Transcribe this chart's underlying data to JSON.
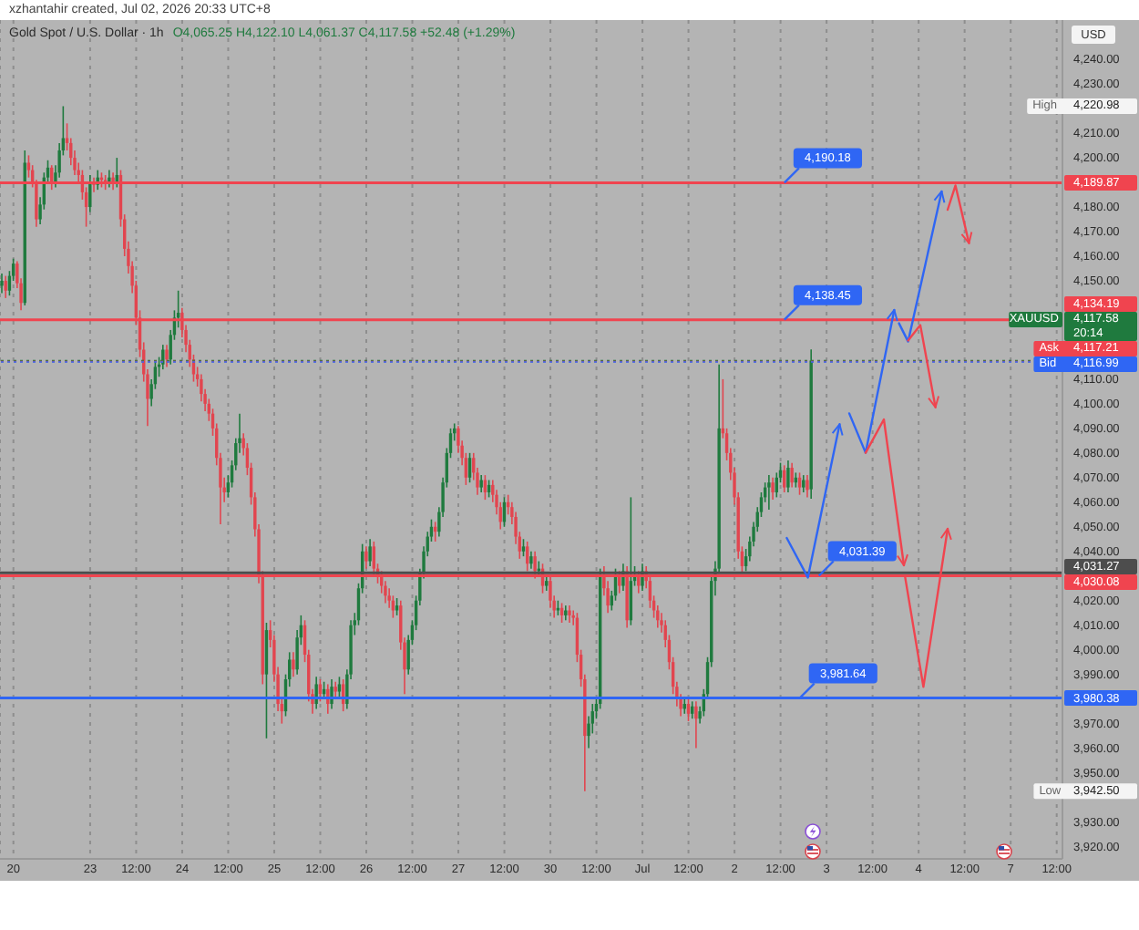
{
  "chart_data": {
    "type": "candlestick",
    "title": "Gold Spot / U.S. Dollar · 1h",
    "subtitle": "O4,065.25 H4,122.10 L4,061.37 C4,117.58 +52.48 (+1.29%)",
    "ylabel": "USD",
    "annotations": [
      "xzhantahir created, Jul 02, 2026 20:33 UTC+8",
      "High 4,220.98",
      "Low 3,942.50",
      {
        "text": "4,190.18",
        "y": 4189.87
      },
      {
        "text": "4,138.45",
        "y": 4134.19
      },
      {
        "text": "4,031.39",
        "y": 4030.08
      },
      {
        "text": "3,981.64",
        "y": 3980.38
      }
    ],
    "categories": [
      null,
      null,
      null,
      "20",
      null,
      null,
      null,
      null,
      null,
      null,
      null,
      null,
      null,
      null,
      null,
      null,
      null,
      null,
      null,
      null,
      null,
      null,
      null,
      "23",
      null,
      null,
      null,
      null,
      null,
      null,
      null,
      null,
      null,
      null,
      null,
      "12:00",
      null,
      null,
      null,
      null,
      null,
      null,
      null,
      null,
      null,
      null,
      null,
      "24",
      null,
      null,
      null,
      null,
      null,
      null,
      null,
      null,
      null,
      null,
      null,
      "12:00",
      null,
      null,
      null,
      null,
      null,
      null,
      null,
      null,
      null,
      null,
      null,
      "25",
      null,
      null,
      null,
      null,
      null,
      null,
      null,
      null,
      null,
      null,
      null,
      "12:00",
      null,
      null,
      null,
      null,
      null,
      null,
      null,
      null,
      null,
      null,
      null,
      "26",
      null,
      null,
      null,
      null,
      null,
      null,
      null,
      null,
      null,
      null,
      null,
      "12:00",
      null,
      null,
      null,
      null,
      null,
      null,
      null,
      null,
      null,
      null,
      null,
      "27",
      null,
      null,
      null,
      null,
      null,
      null,
      null,
      null,
      null,
      null,
      null,
      "12:00",
      null,
      null,
      null,
      null,
      null,
      null,
      null,
      null,
      null,
      null,
      null,
      "30",
      null,
      null,
      null,
      null,
      null,
      null,
      null,
      null,
      null,
      null,
      null,
      "12:00",
      null,
      null,
      null,
      null,
      null,
      null,
      null,
      null,
      null,
      null,
      null,
      "Jul",
      null,
      null,
      null,
      null,
      null,
      null,
      null,
      null,
      null,
      null,
      null,
      "12:00",
      null,
      null,
      null,
      null,
      null,
      null,
      null,
      null,
      null,
      null,
      null,
      "2",
      null,
      null,
      null,
      null,
      null,
      null,
      null,
      null,
      null,
      null,
      null,
      "12:00",
      null,
      null,
      null,
      null,
      null,
      null,
      null,
      null,
      null,
      null,
      null,
      "3",
      null,
      null,
      null,
      null,
      null,
      null,
      null,
      null,
      null,
      null,
      null,
      "12:00",
      null,
      null,
      null,
      null,
      null,
      null,
      null,
      null,
      null,
      null,
      null,
      "4",
      null,
      null,
      null,
      null,
      null,
      null,
      null,
      null,
      null,
      null,
      null,
      "12:00",
      null,
      null,
      null,
      null,
      null,
      null,
      null,
      null,
      null,
      null,
      null,
      "7",
      null,
      null,
      null,
      null,
      null,
      null,
      null,
      null,
      null,
      null,
      null,
      "12:00",
      null
    ],
    "ohlc": [
      [
        4148,
        4153,
        4145,
        4150
      ],
      [
        4150,
        4152,
        4143,
        4146
      ],
      [
        4146,
        4154,
        4144,
        4152
      ],
      [
        4152,
        4159,
        4150,
        4157
      ],
      [
        4157,
        4158,
        4147,
        4149
      ],
      [
        4149,
        4151,
        4138,
        4141
      ],
      [
        4141,
        4203,
        4140,
        4198
      ],
      [
        4198,
        4201,
        4192,
        4195
      ],
      [
        4195,
        4197,
        4188,
        4190
      ],
      [
        4190,
        4191,
        4172,
        4175
      ],
      [
        4175,
        4184,
        4173,
        4181
      ],
      [
        4181,
        4194,
        4179,
        4192
      ],
      [
        4192,
        4199,
        4190,
        4196
      ],
      [
        4196,
        4197,
        4187,
        4190
      ],
      [
        4190,
        4197,
        4188,
        4194
      ],
      [
        4194,
        4206,
        4192,
        4203
      ],
      [
        4203,
        4220.98,
        4201,
        4208
      ],
      [
        4208,
        4214,
        4203,
        4206
      ],
      [
        4206,
        4208,
        4197,
        4200
      ],
      [
        4200,
        4203,
        4193,
        4195
      ],
      [
        4195,
        4198,
        4190,
        4193
      ],
      [
        4193,
        4195,
        4183,
        4186
      ],
      [
        4186,
        4188,
        4172,
        4180
      ],
      [
        4180,
        4193,
        4178,
        4190
      ],
      [
        4190,
        4192,
        4186,
        4189
      ],
      [
        4189,
        4195,
        4187,
        4192
      ],
      [
        4192,
        4194,
        4188,
        4191
      ],
      [
        4191,
        4193,
        4187,
        4190
      ],
      [
        4190,
        4195,
        4188,
        4192
      ],
      [
        4192,
        4194,
        4187,
        4190
      ],
      [
        4190,
        4200,
        4188,
        4193
      ],
      [
        4193,
        4195,
        4172,
        4175
      ],
      [
        4175,
        4177,
        4160,
        4163
      ],
      [
        4163,
        4166,
        4153,
        4156
      ],
      [
        4156,
        4158,
        4145,
        4148
      ],
      [
        4148,
        4150,
        4132,
        4135
      ],
      [
        4135,
        4138,
        4119,
        4122
      ],
      [
        4122,
        4125,
        4109,
        4112
      ],
      [
        4112,
        4114,
        4091,
        4102
      ],
      [
        4102,
        4110,
        4099,
        4108
      ],
      [
        4108,
        4117,
        4106,
        4115
      ],
      [
        4115,
        4119,
        4111,
        4116
      ],
      [
        4116,
        4124,
        4114,
        4122
      ],
      [
        4122,
        4124,
        4115,
        4118
      ],
      [
        4118,
        4130,
        4116,
        4128
      ],
      [
        4128,
        4138,
        4126,
        4135
      ],
      [
        4135,
        4146,
        4131,
        4137
      ],
      [
        4137,
        4139,
        4127,
        4130
      ],
      [
        4130,
        4132,
        4121,
        4124
      ],
      [
        4124,
        4126,
        4115,
        4118
      ],
      [
        4118,
        4120,
        4109,
        4112
      ],
      [
        4112,
        4115,
        4107,
        4110
      ],
      [
        4110,
        4112,
        4101,
        4104
      ],
      [
        4104,
        4106,
        4097,
        4100
      ],
      [
        4100,
        4102,
        4093,
        4096
      ],
      [
        4096,
        4098,
        4087,
        4090
      ],
      [
        4090,
        4092,
        4075,
        4078
      ],
      [
        4078,
        4080,
        4051,
        4066
      ],
      [
        4066,
        4070,
        4060,
        4064
      ],
      [
        4064,
        4071,
        4062,
        4068
      ],
      [
        4068,
        4077,
        4066,
        4075
      ],
      [
        4075,
        4086,
        4073,
        4084
      ],
      [
        4084,
        4096,
        4080,
        4086
      ],
      [
        4086,
        4088,
        4079,
        4082
      ],
      [
        4082,
        4084,
        4071,
        4074
      ],
      [
        4074,
        4076,
        4059,
        4062
      ],
      [
        4062,
        4064,
        4046,
        4049
      ],
      [
        4049,
        4051,
        4027,
        4030
      ],
      [
        4030,
        4032,
        3986,
        3990
      ],
      [
        3990,
        4011,
        3964,
        4008
      ],
      [
        4008,
        4012,
        4001,
        4004
      ],
      [
        4004,
        4006,
        3987,
        3990
      ],
      [
        3990,
        3993,
        3975,
        3978
      ],
      [
        3978,
        3981,
        3970,
        3975
      ],
      [
        3975,
        3990,
        3973,
        3988
      ],
      [
        3988,
        3999,
        3985,
        3996
      ],
      [
        3996,
        3999,
        3989,
        3992
      ],
      [
        3992,
        4008,
        3990,
        4005
      ],
      [
        4005,
        4014,
        4002,
        4010
      ],
      [
        4010,
        4012,
        3995,
        3998
      ],
      [
        3998,
        4000,
        3979,
        3982
      ],
      [
        3982,
        3984,
        3974,
        3978
      ],
      [
        3978,
        3989,
        3976,
        3986
      ],
      [
        3986,
        3988,
        3979,
        3982
      ],
      [
        3982,
        3987,
        3980,
        3984
      ],
      [
        3984,
        3986,
        3974,
        3978
      ],
      [
        3978,
        3988,
        3976,
        3985
      ],
      [
        3985,
        3987,
        3980,
        3983
      ],
      [
        3983,
        3989,
        3981,
        3986
      ],
      [
        3986,
        3988,
        3975,
        3978
      ],
      [
        3978,
        3992,
        3976,
        3990
      ],
      [
        3990,
        4012,
        3988,
        4010
      ],
      [
        4010,
        4015,
        4006,
        4012
      ],
      [
        4012,
        4027,
        4010,
        4025
      ],
      [
        4025,
        4043,
        4023,
        4040
      ],
      [
        4040,
        4042,
        4033,
        4036
      ],
      [
        4036,
        4045,
        4034,
        4042
      ],
      [
        4042,
        4044,
        4030,
        4033
      ],
      [
        4033,
        4035,
        4027,
        4030
      ],
      [
        4030,
        4032,
        4023,
        4026
      ],
      [
        4026,
        4028,
        4019,
        4022
      ],
      [
        4022,
        4025,
        4017,
        4020
      ],
      [
        4020,
        4022,
        4013,
        4016
      ],
      [
        4016,
        4021,
        4014,
        4018
      ],
      [
        4018,
        4020,
        4000,
        4003
      ],
      [
        4003,
        4005,
        3982,
        3992
      ],
      [
        3992,
        4006,
        3990,
        4004
      ],
      [
        4004,
        4012,
        4002,
        4010
      ],
      [
        4010,
        4022,
        4008,
        4020
      ],
      [
        4020,
        4033,
        4018,
        4031
      ],
      [
        4031,
        4042,
        4029,
        4040
      ],
      [
        4040,
        4048,
        4038,
        4046
      ],
      [
        4046,
        4053,
        4044,
        4050
      ],
      [
        4050,
        4052,
        4044,
        4048
      ],
      [
        4048,
        4058,
        4046,
        4056
      ],
      [
        4056,
        4070,
        4054,
        4068
      ],
      [
        4068,
        4082,
        4066,
        4080
      ],
      [
        4080,
        4090,
        4078,
        4088
      ],
      [
        4088,
        4092,
        4085,
        4090
      ],
      [
        4090,
        4091,
        4080,
        4083
      ],
      [
        4083,
        4085,
        4075,
        4078
      ],
      [
        4078,
        4080,
        4067,
        4070
      ],
      [
        4070,
        4080,
        4068,
        4078
      ],
      [
        4078,
        4080,
        4069,
        4072
      ],
      [
        4072,
        4074,
        4063,
        4066
      ],
      [
        4066,
        4071,
        4064,
        4069
      ],
      [
        4069,
        4071,
        4061,
        4064
      ],
      [
        4064,
        4069,
        4062,
        4067
      ],
      [
        4067,
        4069,
        4060,
        4063
      ],
      [
        4063,
        4065,
        4055,
        4058
      ],
      [
        4058,
        4060,
        4049,
        4052
      ],
      [
        4052,
        4062,
        4050,
        4060
      ],
      [
        4060,
        4063,
        4055,
        4058
      ],
      [
        4058,
        4060,
        4051,
        4054
      ],
      [
        4054,
        4056,
        4043,
        4046
      ],
      [
        4046,
        4048,
        4037,
        4040
      ],
      [
        4040,
        4045,
        4038,
        4042
      ],
      [
        4042,
        4044,
        4032,
        4035
      ],
      [
        4035,
        4040,
        4033,
        4038
      ],
      [
        4038,
        4040,
        4029,
        4032
      ],
      [
        4032,
        4036,
        4030,
        4033
      ],
      [
        4033,
        4035,
        4023,
        4026
      ],
      [
        4026,
        4030,
        4024,
        4028
      ],
      [
        4028,
        4030,
        4017,
        4020
      ],
      [
        4020,
        4022,
        4013,
        4016
      ],
      [
        4016,
        4020,
        4014,
        4017
      ],
      [
        4017,
        4019,
        4011,
        4014
      ],
      [
        4014,
        4018,
        4012,
        4016
      ],
      [
        4016,
        4018,
        4011,
        4014
      ],
      [
        4014,
        4016,
        4010,
        4013
      ],
      [
        4013,
        4015,
        3995,
        3998
      ],
      [
        3998,
        4000,
        3985,
        3988
      ],
      [
        3988,
        3990,
        3942.5,
        3965
      ],
      [
        3965,
        3973,
        3960,
        3970
      ],
      [
        3970,
        3978,
        3966,
        3975
      ],
      [
        3975,
        3981,
        3972,
        3978
      ],
      [
        3978,
        4033,
        3976,
        4030
      ],
      [
        4030,
        4034,
        4022,
        4025
      ],
      [
        4025,
        4028,
        4015,
        4018
      ],
      [
        4018,
        4024,
        4016,
        4022
      ],
      [
        4022,
        4033,
        4020,
        4030
      ],
      [
        4030,
        4032,
        4023,
        4026
      ],
      [
        4026,
        4035,
        4024,
        4032
      ],
      [
        4032,
        4034,
        4009,
        4012
      ],
      [
        4012,
        4062,
        4010,
        4028
      ],
      [
        4028,
        4034,
        4026,
        4030
      ],
      [
        4030,
        4032,
        4023,
        4026
      ],
      [
        4026,
        4035,
        4024,
        4032
      ],
      [
        4032,
        4034,
        4025,
        4028
      ],
      [
        4028,
        4030,
        4017,
        4020
      ],
      [
        4020,
        4022,
        4013,
        4016
      ],
      [
        4016,
        4018,
        4009,
        4012
      ],
      [
        4012,
        4015,
        4007,
        4010
      ],
      [
        4010,
        4012,
        4001,
        4004
      ],
      [
        4004,
        4006,
        3992,
        3995
      ],
      [
        3995,
        3997,
        3982,
        3985
      ],
      [
        3985,
        3987,
        3977,
        3980
      ],
      [
        3980,
        3982,
        3973,
        3976
      ],
      [
        3976,
        3981,
        3974,
        3978
      ],
      [
        3978,
        3980,
        3971,
        3974
      ],
      [
        3974,
        3979,
        3972,
        3977
      ],
      [
        3977,
        3979,
        3960,
        3972
      ],
      [
        3972,
        3977,
        3970,
        3975
      ],
      [
        3975,
        3984,
        3973,
        3982
      ],
      [
        3982,
        3997,
        3980,
        3995
      ],
      [
        3995,
        4030,
        3993,
        4028
      ],
      [
        4028,
        4036,
        4022,
        4033
      ],
      [
        4033,
        4116,
        4031,
        4090
      ],
      [
        4090,
        4110,
        4086,
        4088
      ],
      [
        4088,
        4090,
        4077,
        4080
      ],
      [
        4080,
        4082,
        4069,
        4072
      ],
      [
        4072,
        4074,
        4059,
        4062
      ],
      [
        4062,
        4064,
        4037,
        4040
      ],
      [
        4040,
        4042,
        4031,
        4034
      ],
      [
        4034,
        4041,
        4032,
        4038
      ],
      [
        4038,
        4046,
        4036,
        4044
      ],
      [
        4044,
        4052,
        4042,
        4050
      ],
      [
        4050,
        4058,
        4048,
        4056
      ],
      [
        4056,
        4064,
        4054,
        4062
      ],
      [
        4062,
        4068,
        4060,
        4066
      ],
      [
        4066,
        4071,
        4057,
        4068
      ],
      [
        4068,
        4070,
        4061,
        4064
      ],
      [
        4064,
        4072,
        4062,
        4070
      ],
      [
        4070,
        4076,
        4068,
        4073
      ],
      [
        4073,
        4075,
        4064,
        4066
      ],
      [
        4066,
        4077,
        4064,
        4074
      ],
      [
        4074,
        4076,
        4066,
        4068
      ],
      [
        4068,
        4072,
        4066,
        4070
      ],
      [
        4070,
        4072,
        4063,
        4066
      ],
      [
        4066,
        4071,
        4064,
        4069
      ],
      [
        4069,
        4071,
        4062,
        4065
      ],
      [
        4065.25,
        4122.1,
        4061.37,
        4117.58
      ],
      null,
      null,
      null,
      null,
      null,
      null,
      null,
      null,
      null,
      null,
      null,
      null,
      null,
      null,
      null,
      null,
      null,
      null,
      null,
      null,
      null,
      null,
      null,
      null,
      null,
      null,
      null,
      null,
      null,
      null,
      null,
      null,
      null,
      null,
      null,
      null,
      null,
      null,
      null,
      null,
      null,
      null,
      null,
      null,
      null,
      null,
      null,
      null,
      null,
      null,
      null,
      null,
      null,
      null,
      null,
      null,
      null,
      null,
      null,
      null,
      null,
      null,
      null,
      null,
      null
    ],
    "colors": [
      "#1f7a3e",
      "#e2454f",
      "#1f7a3e",
      "#1f7a3e",
      "#e2454f",
      "#e2454f",
      "#1f7a3e",
      "#e2454f",
      "#e2454f",
      "#e2454f",
      "#1f7a3e",
      "#1f7a3e",
      "#1f7a3e",
      "#e2454f",
      "#1f7a3e",
      "#1f7a3e",
      "#1f7a3e",
      "#e2454f",
      "#e2454f",
      "#e2454f",
      "#e2454f",
      "#e2454f",
      "#e2454f",
      "#1f7a3e",
      "#e2454f",
      "#1f7a3e",
      "#e2454f",
      "#e2454f",
      "#1f7a3e",
      "#e2454f",
      "#1f7a3e",
      "#e2454f",
      "#e2454f",
      "#e2454f",
      "#e2454f",
      "#e2454f",
      "#e2454f",
      "#e2454f",
      "#e2454f",
      "#1f7a3e",
      "#1f7a3e",
      "#1f7a3e",
      "#1f7a3e",
      "#e2454f",
      "#1f7a3e",
      "#1f7a3e",
      "#1f7a3e",
      "#e2454f",
      "#e2454f",
      "#e2454f",
      "#e2454f",
      "#e2454f",
      "#e2454f",
      "#e2454f",
      "#e2454f",
      "#e2454f",
      "#e2454f",
      "#e2454f",
      "#e2454f",
      "#1f7a3e",
      "#1f7a3e",
      "#1f7a3e",
      "#1f7a3e",
      "#e2454f",
      "#e2454f",
      "#e2454f",
      "#e2454f",
      "#e2454f",
      "#e2454f",
      "#1f7a3e",
      "#e2454f",
      "#e2454f",
      "#e2454f",
      "#e2454f",
      "#1f7a3e",
      "#1f7a3e",
      "#e2454f",
      "#1f7a3e",
      "#1f7a3e",
      "#e2454f",
      "#e2454f",
      "#e2454f",
      "#1f7a3e",
      "#e2454f",
      "#1f7a3e",
      "#e2454f",
      "#1f7a3e",
      "#e2454f",
      "#1f7a3e",
      "#e2454f",
      "#1f7a3e",
      "#1f7a3e",
      "#1f7a3e",
      "#1f7a3e",
      "#1f7a3e",
      "#e2454f",
      "#1f7a3e",
      "#e2454f",
      "#e2454f",
      "#e2454f",
      "#e2454f",
      "#e2454f",
      "#e2454f",
      "#1f7a3e",
      "#e2454f",
      "#e2454f",
      "#1f7a3e",
      "#1f7a3e",
      "#1f7a3e",
      "#1f7a3e",
      "#1f7a3e",
      "#1f7a3e",
      "#1f7a3e",
      "#e2454f",
      "#1f7a3e",
      "#1f7a3e",
      "#1f7a3e",
      "#1f7a3e",
      "#1f7a3e",
      "#e2454f",
      "#e2454f",
      "#e2454f",
      "#1f7a3e",
      "#e2454f",
      "#e2454f",
      "#1f7a3e",
      "#e2454f",
      "#1f7a3e",
      "#e2454f",
      "#e2454f",
      "#e2454f",
      "#1f7a3e",
      "#e2454f",
      "#e2454f",
      "#e2454f",
      "#e2454f",
      "#1f7a3e",
      "#e2454f",
      "#1f7a3e",
      "#e2454f",
      "#1f7a3e",
      "#e2454f",
      "#1f7a3e",
      "#e2454f",
      "#e2454f",
      "#1f7a3e",
      "#e2454f",
      "#1f7a3e",
      "#e2454f",
      "#e2454f",
      "#e2454f",
      "#e2454f",
      "#e2454f",
      "#1f7a3e",
      "#1f7a3e",
      "#1f7a3e",
      "#1f7a3e",
      "#e2454f",
      "#e2454f",
      "#1f7a3e",
      "#1f7a3e",
      "#e2454f",
      "#1f7a3e",
      "#e2454f",
      "#1f7a3e",
      "#1f7a3e",
      "#e2454f",
      "#1f7a3e",
      "#e2454f",
      "#e2454f",
      "#e2454f",
      "#e2454f",
      "#e2454f",
      "#e2454f",
      "#e2454f",
      "#e2454f",
      "#e2454f",
      "#e2454f",
      "#1f7a3e",
      "#e2454f",
      "#1f7a3e",
      "#e2454f",
      "#1f7a3e",
      "#1f7a3e",
      "#1f7a3e",
      "#1f7a3e",
      "#1f7a3e",
      "#1f7a3e",
      "#e2454f",
      "#e2454f",
      "#e2454f",
      "#e2454f",
      "#e2454f",
      "#e2454f",
      "#1f7a3e",
      "#1f7a3e",
      "#1f7a3e",
      "#1f7a3e",
      "#1f7a3e",
      "#1f7a3e",
      "#1f7a3e",
      "#e2454f",
      "#1f7a3e",
      "#1f7a3e",
      "#e2454f",
      "#1f7a3e",
      "#e2454f",
      "#1f7a3e",
      "#e2454f",
      "#1f7a3e",
      "#e2454f",
      "#1f7a3e",
      null,
      null,
      null,
      null,
      null,
      null,
      null,
      null,
      null,
      null,
      null,
      null,
      null,
      null,
      null,
      null,
      null,
      null,
      null,
      null,
      null,
      null,
      null,
      null,
      null,
      null,
      null,
      null,
      null,
      null,
      null,
      null,
      null,
      null,
      null,
      null,
      null,
      null,
      null,
      null,
      null,
      null,
      null,
      null,
      null,
      null,
      null,
      null,
      null,
      null,
      null,
      null,
      null,
      null,
      null,
      null,
      null,
      null,
      null,
      null,
      null,
      null,
      null,
      null,
      null
    ],
    "ylim": [
      3915,
      4256
    ],
    "yticks": [
      {
        "value": 4240,
        "label": "4,240.00"
      },
      {
        "value": 4230,
        "label": "4,230.00"
      },
      {
        "value": 4210,
        "label": "4,210.00"
      },
      {
        "value": 4200,
        "label": "4,200.00"
      },
      {
        "value": 4180,
        "label": "4,180.00"
      },
      {
        "value": 4170,
        "label": "4,170.00"
      },
      {
        "value": 4160,
        "label": "4,160.00"
      },
      {
        "value": 4150,
        "label": "4,150.00"
      },
      {
        "value": 4110,
        "label": "4,110.00"
      },
      {
        "value": 4100,
        "label": "4,100.00"
      },
      {
        "value": 4090,
        "label": "4,090.00"
      },
      {
        "value": 4080,
        "label": "4,080.00"
      },
      {
        "value": 4070,
        "label": "4,070.00"
      },
      {
        "value": 4060,
        "label": "4,060.00"
      },
      {
        "value": 4050,
        "label": "4,050.00"
      },
      {
        "value": 4040,
        "label": "4,040.00"
      },
      {
        "value": 4020,
        "label": "4,020.00"
      },
      {
        "value": 4010,
        "label": "4,010.00"
      },
      {
        "value": 4000,
        "label": "4,000.00"
      },
      {
        "value": 3990,
        "label": "3,990.00"
      },
      {
        "value": 3970,
        "label": "3,970.00"
      },
      {
        "value": 3960,
        "label": "3,960.00"
      },
      {
        "value": 3950,
        "label": "3,950.00"
      },
      {
        "value": 3930,
        "label": "3,930.00"
      },
      {
        "value": 3920,
        "label": "3,920.00"
      }
    ],
    "grid": "x",
    "ref_lines": [
      {
        "axis": "y",
        "value": 4189.87,
        "label": "4,189.87",
        "color": "#f0444f"
      },
      {
        "axis": "y",
        "value": 4134.19,
        "label": "4,134.19",
        "color": "#f0444f"
      },
      {
        "axis": "y",
        "value": 4117.58,
        "label": "XAUUSD 4,117.58 20:14",
        "color": "#1f7a3e",
        "line_style": "dotted"
      },
      {
        "axis": "y",
        "value": 4117.21,
        "label": "Ask 4,117.21",
        "color": "#f0444f",
        "line_style": "dotted"
      },
      {
        "axis": "y",
        "value": 4116.99,
        "label": "Bid 4,116.99",
        "color": "#2f66f4",
        "line_style": "dotted"
      },
      {
        "axis": "y",
        "value": 4031.27,
        "label": "4,031.27",
        "color": "#4d4d4d"
      },
      {
        "axis": "y",
        "value": 4030.08,
        "label": "4,030.08",
        "color": "#f0444f"
      },
      {
        "axis": "y",
        "value": 3980.38,
        "label": "3,980.38",
        "color": "#2f66f4"
      }
    ]
  }
}
